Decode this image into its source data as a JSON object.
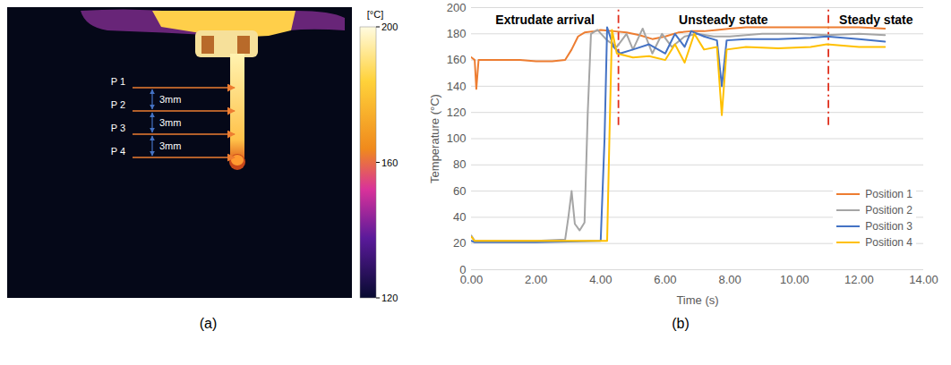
{
  "chart_data": [
    {
      "type": "thermal_image",
      "panel": "(a)",
      "colorbar": {
        "title": "[°C]",
        "lim": [
          120,
          200
        ],
        "ticks": [
          120,
          160,
          200
        ]
      },
      "annotations": [
        "P 1",
        "P 2",
        "P 3",
        "P 4"
      ],
      "spacing_labels": [
        "3mm",
        "3mm",
        "3mm"
      ]
    },
    {
      "type": "line",
      "panel": "(b)",
      "xlabel": "Time (s)",
      "ylabel": "Temperature (°C)",
      "xlim": [
        0,
        14
      ],
      "xticks": [
        {
          "value": 0,
          "label": "0.00"
        },
        {
          "value": 2,
          "label": "2.00"
        },
        {
          "value": 4,
          "label": "4.00"
        },
        {
          "value": 6,
          "label": "6.00"
        },
        {
          "value": 8,
          "label": "8.00"
        },
        {
          "value": 10,
          "label": "10.00"
        },
        {
          "value": 12,
          "label": "12.00"
        },
        {
          "value": 14,
          "label": "14.00"
        }
      ],
      "ylim": [
        0,
        200
      ],
      "yticks": [
        0,
        20,
        40,
        60,
        80,
        100,
        120,
        140,
        160,
        180,
        200
      ],
      "grid": true,
      "legend": "lower right",
      "phases": [
        "Extrudate arrival",
        "Unsteady state",
        "Steady state"
      ],
      "phase_boundaries": [
        4.55,
        11.05
      ],
      "series": [
        {
          "name": "Position 1",
          "color": "#ED7D31",
          "x": [
            0,
            0.1,
            0.15,
            0.22,
            0.5,
            1.0,
            1.5,
            2.0,
            2.5,
            2.9,
            3.1,
            3.3,
            3.5,
            3.8,
            4.0,
            4.4,
            4.8,
            5.2,
            5.6,
            6.0,
            6.4,
            6.8,
            7.2,
            7.6,
            8.0,
            8.5,
            9,
            10,
            11,
            12,
            12.8
          ],
          "values": [
            162,
            160,
            138,
            160,
            160,
            160,
            160,
            159,
            159,
            160,
            168,
            178,
            181,
            182,
            183,
            182,
            181,
            179,
            176,
            178,
            181,
            182,
            182,
            183,
            184,
            185,
            185,
            185,
            185,
            185,
            184
          ]
        },
        {
          "name": "Position 2",
          "color": "#A5A5A5",
          "x": [
            0,
            0.1,
            1,
            2,
            2.9,
            3.0,
            3.1,
            3.2,
            3.35,
            3.5,
            3.6,
            3.7,
            3.9,
            4.2,
            4.5,
            4.8,
            5.0,
            5.3,
            5.6,
            5.9,
            6.2,
            6.6,
            7.0,
            7.5,
            8.0,
            9,
            10,
            11,
            12,
            12.8
          ],
          "values": [
            26,
            22,
            22,
            22,
            23,
            40,
            60,
            35,
            30,
            36,
            120,
            180,
            183,
            175,
            170,
            180,
            168,
            184,
            165,
            180,
            170,
            178,
            180,
            178,
            178,
            180,
            180,
            179,
            180,
            179
          ]
        },
        {
          "name": "Position 3",
          "color": "#4472C4",
          "x": [
            0,
            0.1,
            2,
            4.0,
            4.12,
            4.2,
            4.4,
            4.6,
            5.0,
            5.5,
            6.0,
            6.3,
            6.6,
            6.8,
            7.2,
            7.6,
            7.75,
            7.9,
            8.5,
            9.5,
            10.5,
            11,
            12,
            12.8
          ],
          "values": [
            22,
            21,
            21,
            22,
            100,
            185,
            170,
            165,
            168,
            172,
            165,
            180,
            170,
            182,
            178,
            175,
            140,
            175,
            176,
            176,
            177,
            178,
            176,
            174
          ]
        },
        {
          "name": "Position 4",
          "color": "#FFC000",
          "x": [
            0,
            0.1,
            2,
            4.2,
            4.27,
            4.35,
            4.5,
            5.0,
            5.5,
            6.0,
            6.3,
            6.6,
            6.9,
            7.2,
            7.6,
            7.75,
            7.9,
            8.5,
            9.5,
            10.5,
            11,
            12,
            12.8
          ],
          "values": [
            25,
            22,
            22,
            22,
            100,
            183,
            165,
            162,
            163,
            160,
            172,
            158,
            180,
            168,
            170,
            118,
            168,
            170,
            169,
            170,
            172,
            170,
            170
          ]
        }
      ]
    }
  ]
}
